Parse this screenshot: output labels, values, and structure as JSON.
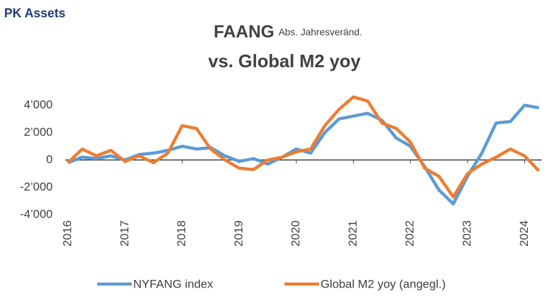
{
  "brand": "PK Assets",
  "chart_data": {
    "type": "line",
    "title": "FAANG",
    "title_note": "Abs. Jahresveränd.",
    "subtitle": "vs. Global M2 yoy",
    "x": [
      2016.0,
      2016.25,
      2016.5,
      2016.75,
      2017.0,
      2017.25,
      2017.5,
      2017.75,
      2018.0,
      2018.25,
      2018.5,
      2018.75,
      2019.0,
      2019.25,
      2019.5,
      2019.75,
      2020.0,
      2020.25,
      2020.5,
      2020.75,
      2021.0,
      2021.25,
      2021.5,
      2021.75,
      2022.0,
      2022.25,
      2022.5,
      2022.75,
      2023.0,
      2023.25,
      2023.5,
      2023.75,
      2024.0,
      2024.25
    ],
    "series": [
      {
        "name": "NYFANG index",
        "color": "#5b9bd5",
        "values": [
          -200,
          200,
          100,
          300,
          0,
          400,
          500,
          700,
          1000,
          800,
          900,
          300,
          -100,
          100,
          -300,
          200,
          800,
          500,
          2000,
          3000,
          3200,
          3400,
          2900,
          1600,
          1000,
          -500,
          -2200,
          -3200,
          -1200,
          500,
          2700,
          2800,
          4000,
          3800
        ]
      },
      {
        "name": "Global M2 yoy (angegl.)",
        "color": "#ed7d31",
        "values": [
          -200,
          800,
          300,
          700,
          -100,
          300,
          -200,
          500,
          2500,
          2300,
          800,
          0,
          -600,
          -700,
          0,
          200,
          600,
          800,
          2500,
          3700,
          4600,
          4300,
          2700,
          2300,
          1300,
          -600,
          -1200,
          -2700,
          -1000,
          -300,
          200,
          800,
          300,
          -800
        ]
      }
    ],
    "xlim": [
      2016,
      2024.3
    ],
    "xticks": [
      2016,
      2017,
      2018,
      2019,
      2020,
      2021,
      2022,
      2023,
      2024
    ],
    "ylim": [
      -4000,
      5000
    ],
    "yticks": [
      {
        "value": -4000,
        "label": "-4’000"
      },
      {
        "value": -2000,
        "label": "-2’000"
      },
      0,
      {
        "value": 2000,
        "label": "2’000"
      },
      {
        "value": 4000,
        "label": "4’000"
      }
    ],
    "grid": false,
    "legend": "bottom"
  }
}
